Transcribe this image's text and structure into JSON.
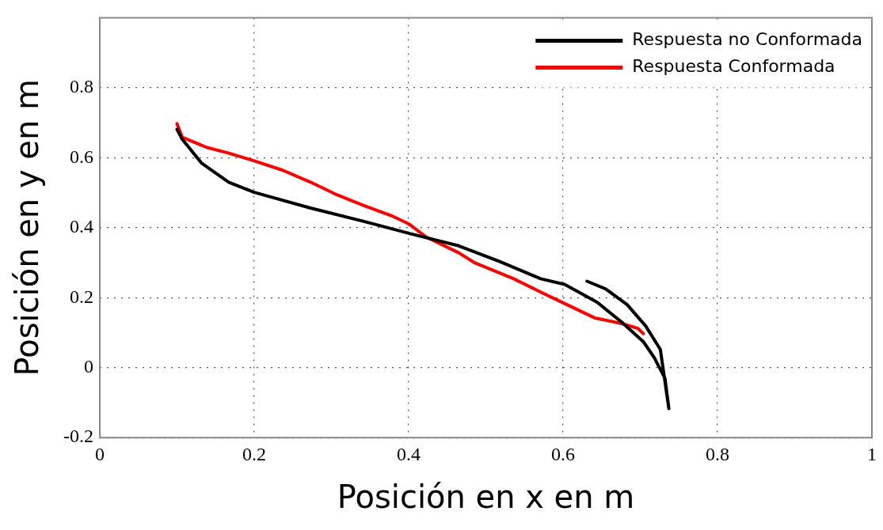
{
  "chart_data": {
    "type": "line",
    "xlabel": "Posición en x en m",
    "ylabel": "Posición en y en m",
    "xlim": [
      0,
      1
    ],
    "xticks": [
      0,
      0.2,
      0.4,
      0.6,
      0.8,
      1
    ],
    "ylim": [
      -0.2,
      1
    ],
    "yticks": [
      -0.2,
      0,
      0.2,
      0.4,
      0.6,
      0.8
    ],
    "grid": true,
    "legend": "top right",
    "marker": "none",
    "line_style": "solid",
    "series": [
      {
        "name": "Respuesta no Conformada",
        "color": "#000000",
        "x": [
          0.1,
          0.107,
          0.132,
          0.167,
          0.2,
          0.273,
          0.342,
          0.4,
          0.465,
          0.518,
          0.571,
          0.602,
          0.644,
          0.676,
          0.704,
          0.718,
          0.732,
          0.737,
          0.726,
          0.707,
          0.683,
          0.655,
          0.631
        ],
        "values": [
          0.681,
          0.652,
          0.584,
          0.53,
          0.501,
          0.456,
          0.418,
          0.384,
          0.348,
          0.303,
          0.254,
          0.238,
          0.187,
          0.13,
          0.074,
          0.029,
          -0.031,
          -0.117,
          0.052,
          0.119,
          0.18,
          0.225,
          0.247
        ]
      },
      {
        "name": "Respuesta Conformada",
        "color": "#ff0000",
        "x": [
          0.1,
          0.107,
          0.139,
          0.167,
          0.2,
          0.237,
          0.273,
          0.307,
          0.342,
          0.378,
          0.4,
          0.423,
          0.465,
          0.486,
          0.536,
          0.571,
          0.605,
          0.641,
          0.676,
          0.697,
          0.704
        ],
        "values": [
          0.697,
          0.658,
          0.629,
          0.613,
          0.591,
          0.564,
          0.53,
          0.494,
          0.463,
          0.434,
          0.411,
          0.373,
          0.328,
          0.299,
          0.254,
          0.216,
          0.18,
          0.142,
          0.126,
          0.112,
          0.097
        ]
      }
    ]
  }
}
